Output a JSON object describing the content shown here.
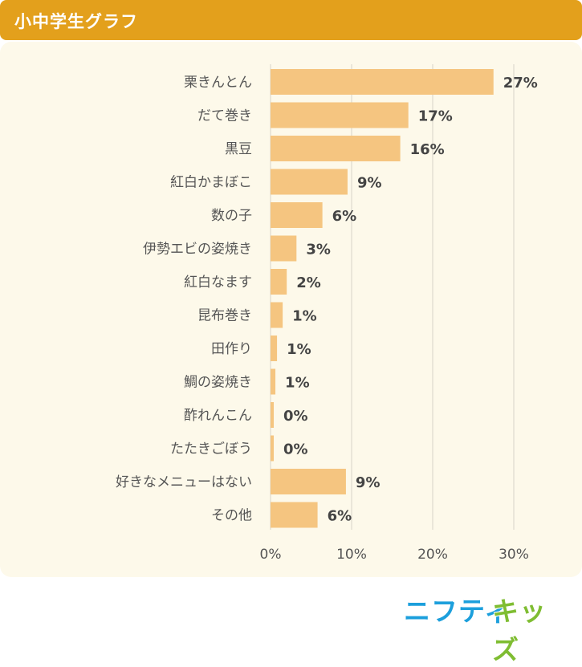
{
  "header": {
    "title": "小中学生グラフ"
  },
  "chart_data": {
    "type": "bar",
    "orientation": "horizontal",
    "categories": [
      "栗きんとん",
      "だて巻き",
      "黒豆",
      "紅白かまぼこ",
      "数の子",
      "伊勢エビの姿焼き",
      "紅白なます",
      "昆布巻き",
      "田作り",
      "鯛の姿焼き",
      "酢れんこん",
      "たたきごぼう",
      "好きなメニューはない",
      "その他"
    ],
    "values": [
      27,
      17,
      16,
      9,
      6,
      3,
      2,
      1,
      1,
      1,
      0,
      0,
      9,
      6
    ],
    "plotted_values": [
      27.5,
      17,
      16,
      9.5,
      6.4,
      3.2,
      2,
      1.5,
      0.8,
      0.6,
      0.4,
      0.4,
      9.3,
      5.8
    ],
    "value_labels": [
      "27%",
      "17%",
      "16%",
      "9%",
      "6%",
      "3%",
      "2%",
      "1%",
      "1%",
      "1%",
      "0%",
      "0%",
      "9%",
      "6%"
    ],
    "xticks": [
      "0%",
      "10%",
      "20%",
      "30%"
    ],
    "xlim": [
      0,
      30
    ],
    "grid": true,
    "colors": {
      "bar": "#f5c580",
      "grid": "#d6d3c8",
      "label": "#555555",
      "value": "#444444"
    }
  },
  "brand": {
    "part1": "ニフティ",
    "part2": "キッズ"
  }
}
